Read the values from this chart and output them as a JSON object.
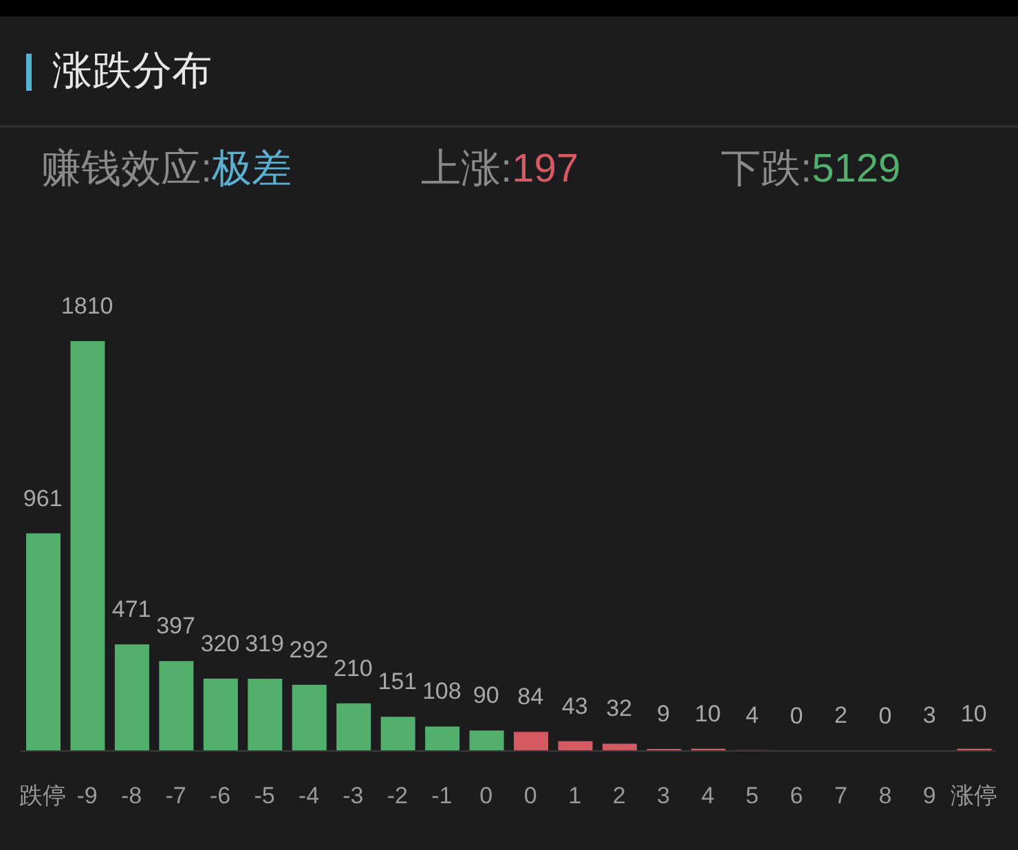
{
  "chart_data": {
    "type": "bar",
    "title": "涨跌分布",
    "annotations": [
      "赚钱效应:极差",
      "上涨:197",
      "下跌:5129"
    ],
    "categories": [
      "跌停",
      "-9",
      "-8",
      "-7",
      "-6",
      "-5",
      "-4",
      "-3",
      "-2",
      "-1",
      "0",
      "0",
      "1",
      "2",
      "3",
      "4",
      "5",
      "6",
      "7",
      "8",
      "9",
      "涨停"
    ],
    "values": [
      961,
      1810,
      471,
      397,
      320,
      319,
      292,
      210,
      151,
      108,
      90,
      84,
      43,
      32,
      9,
      10,
      4,
      0,
      2,
      0,
      3,
      10
    ],
    "colors": [
      "#52b06c",
      "#52b06c",
      "#52b06c",
      "#52b06c",
      "#52b06c",
      "#52b06c",
      "#52b06c",
      "#52b06c",
      "#52b06c",
      "#52b06c",
      "#52b06c",
      "#d65a63",
      "#d65a63",
      "#d65a63",
      "#d65a63",
      "#d65a63",
      "#d65a63",
      "#d65a63",
      "#d65a63",
      "#d65a63",
      "#d65a63",
      "#d65a63"
    ],
    "data_labels": true,
    "grid": false,
    "tick_labels": "x"
  }
}
